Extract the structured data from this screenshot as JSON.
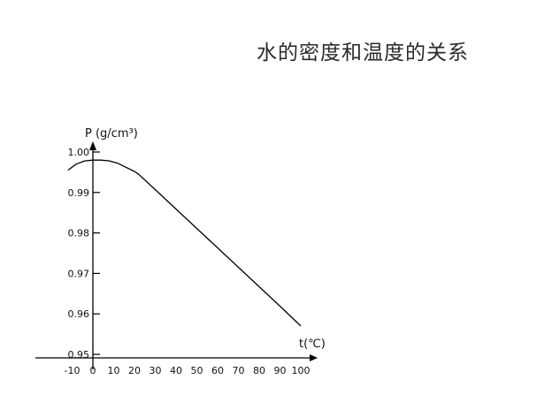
{
  "page": {
    "title": "水的密度和温度的关系"
  },
  "chart_data": {
    "type": "line",
    "title": "水的密度和温度的关系",
    "xlabel": "t(℃)",
    "ylabel": "P (g/cm³)",
    "x_ticks": [
      -10,
      0,
      10,
      20,
      30,
      40,
      50,
      60,
      70,
      80,
      90,
      100
    ],
    "x_tick_labels": [
      "-10",
      "0",
      "10",
      "20",
      "30",
      "40",
      "50",
      "60",
      "70",
      "80",
      "90",
      "100"
    ],
    "y_ticks": [
      0.95,
      0.96,
      0.97,
      0.98,
      0.99,
      1.0
    ],
    "y_tick_labels": [
      "0.95",
      "0.96",
      "0.97",
      "0.98",
      "0.99",
      "1.00"
    ],
    "xlim": [
      -10,
      100
    ],
    "ylim": [
      0.95,
      1.0
    ],
    "grid": false,
    "series": [
      {
        "x": [
          -12,
          -8,
          -4,
          0,
          4,
          8,
          12,
          16,
          20,
          22,
          30,
          40,
          50,
          60,
          70,
          80,
          90,
          100
        ],
        "y": [
          0.9955,
          0.997,
          0.9978,
          0.998,
          0.998,
          0.9978,
          0.9972,
          0.9962,
          0.9952,
          0.9945,
          0.9907,
          0.9859,
          0.9811,
          0.9763,
          0.9715,
          0.9667,
          0.9619,
          0.957
        ]
      }
    ],
    "colors": {
      "axis": "#000000",
      "line": "#000000"
    }
  }
}
